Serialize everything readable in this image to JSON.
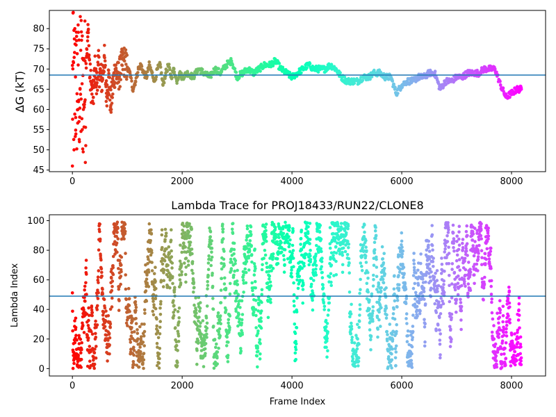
{
  "chart_data": [
    {
      "type": "scatter",
      "title": "",
      "xlabel": "",
      "ylabel": "ΔG (kT)",
      "xlim": [
        -420,
        8620
      ],
      "ylim": [
        44.6,
        84.5
      ],
      "xticks": [
        0,
        2000,
        4000,
        6000,
        8000
      ],
      "yticks": [
        45,
        50,
        55,
        60,
        65,
        70,
        75,
        80
      ],
      "hline": 68.5,
      "hline_color": "#1f77b4",
      "colormap": "rainbow (red at frame 0 → violet at last frame)",
      "grid": false,
      "legend": "none",
      "series": [
        {
          "x": [
            0,
            15,
            30,
            45,
            60,
            75,
            90,
            105,
            120,
            140,
            160,
            180,
            200,
            230,
            260,
            290,
            320,
            350,
            380,
            410,
            440,
            470,
            500,
            540,
            580,
            620,
            660,
            700,
            740,
            780,
            820,
            860,
            900,
            950,
            1000,
            1050,
            1100,
            1150,
            1200,
            1250,
            1300,
            1350,
            1400,
            1450,
            1500,
            1550,
            1600,
            1650,
            1700,
            1750,
            1800,
            1850,
            1900,
            1950,
            2000,
            2100,
            2200,
            2300,
            2400,
            2500,
            2600,
            2700,
            2800,
            2900,
            3000,
            3100,
            3200,
            3300,
            3400,
            3500,
            3600,
            3700,
            3800,
            3900,
            4000,
            4100,
            4200,
            4300,
            4400,
            4500,
            4600,
            4700,
            4800,
            4900,
            5000,
            5100,
            5200,
            5300,
            5400,
            5500,
            5600,
            5700,
            5800,
            5900,
            6000,
            6100,
            6200,
            6300,
            6400,
            6500,
            6600,
            6700,
            6800,
            6900,
            7000,
            7100,
            7200,
            7300,
            7400,
            7500,
            7600,
            7700,
            7800,
            7900,
            8000,
            8100,
            8180
          ],
          "y": [
            46,
            84,
            50,
            80,
            58,
            77,
            62,
            71,
            57,
            65,
            82,
            55,
            60,
            72,
            75,
            79,
            68,
            65,
            63,
            70,
            66,
            71,
            69,
            67,
            73,
            64,
            68,
            61,
            66,
            70,
            68,
            69,
            71,
            72,
            70,
            69,
            65,
            67,
            70,
            71,
            69,
            68,
            71,
            69,
            67,
            70,
            71,
            66,
            69,
            71,
            68,
            70,
            67,
            69,
            68,
            69,
            68,
            70,
            69,
            68,
            70,
            69,
            71,
            72,
            68,
            69,
            70,
            69,
            70,
            71,
            71,
            72,
            70,
            69,
            68,
            69,
            70,
            71,
            70,
            70,
            70,
            71,
            70,
            68,
            67,
            67,
            67,
            68,
            68,
            69,
            69,
            68,
            68,
            64,
            66,
            67,
            67,
            68,
            68,
            69,
            69,
            65,
            67,
            67,
            68,
            68,
            69,
            69,
            69,
            70,
            70,
            70,
            66,
            63,
            64,
            65,
            65
          ]
        }
      ]
    },
    {
      "type": "scatter",
      "title": "Lambda Trace for PROJ18433/RUN22/CLONE8",
      "xlabel": "Frame Index",
      "ylabel": "Lambda Index",
      "xlim": [
        -420,
        8620
      ],
      "ylim": [
        -5,
        104
      ],
      "xticks": [
        0,
        2000,
        4000,
        6000,
        8000
      ],
      "yticks": [
        0,
        20,
        40,
        60,
        80,
        100
      ],
      "hline": 49,
      "hline_color": "#1f77b4",
      "colormap": "rainbow (red at frame 0 → violet at last frame)",
      "grid": false,
      "legend": "none",
      "frames": 8180,
      "lambda_range": [
        0,
        99
      ]
    }
  ]
}
